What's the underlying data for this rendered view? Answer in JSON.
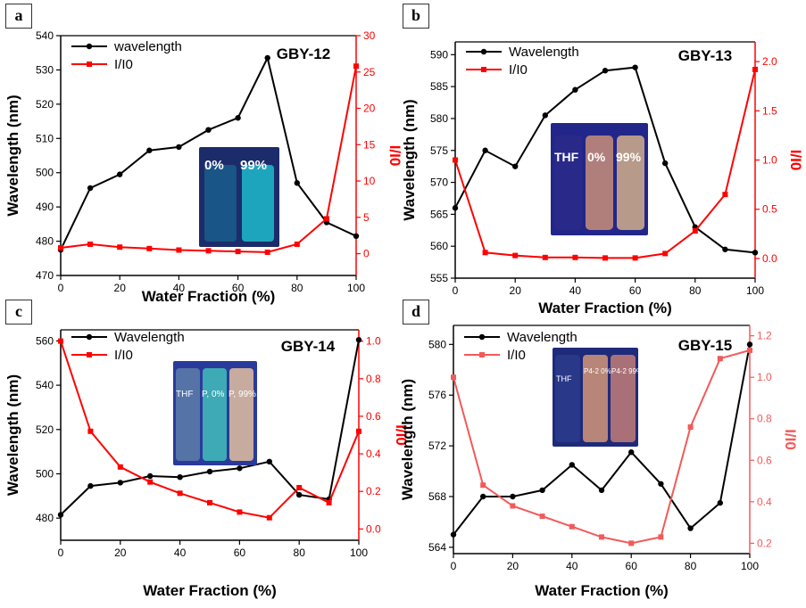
{
  "panels": [
    {
      "badge": "a",
      "inset_labels": [
        "0%",
        "99%"
      ],
      "inset_colors": [
        "#1a5a8a",
        "#1fb3c8"
      ]
    },
    {
      "badge": "b",
      "inset_labels": [
        "THF",
        "0%",
        "99%"
      ],
      "inset_colors": [
        "#2a2a8a",
        "#c08a7a",
        "#c8a78a"
      ]
    },
    {
      "badge": "c",
      "inset_labels": [
        "THF",
        "P, 0%",
        "P, 99%"
      ],
      "inset_colors": [
        "#5a7aa8",
        "#3fb7b8",
        "#d8b8a0"
      ]
    },
    {
      "badge": "d",
      "inset_labels": [
        "THF",
        "P4-2 0%",
        "P4-2 99%"
      ],
      "inset_colors": [
        "#2a3a8a",
        "#c89078",
        "#b87878"
      ]
    }
  ],
  "chart_data": [
    {
      "type": "line",
      "title": "GBY-12",
      "xlabel": "Water Fraction (%)",
      "ylabel": "Wavelength (nm)",
      "y2label": "I/I0",
      "x": [
        0,
        10,
        20,
        30,
        40,
        50,
        60,
        70,
        80,
        90,
        100
      ],
      "xlim": [
        0,
        100
      ],
      "ylim": [
        470,
        540
      ],
      "y2lim": [
        -3,
        30
      ],
      "xticks": [
        "0",
        "20",
        "40",
        "60",
        "80",
        "100"
      ],
      "yticks": [
        "470",
        "480",
        "490",
        "500",
        "510",
        "520",
        "530",
        "540"
      ],
      "y2ticks": [
        "0",
        "5",
        "10",
        "15",
        "20",
        "25",
        "30"
      ],
      "legend_position": "top-left",
      "series": [
        {
          "name": "wavelength",
          "axis": "left",
          "color": "#000000",
          "values": [
            477.5,
            495.5,
            499.5,
            506.5,
            507.5,
            512.5,
            516,
            533.5,
            497,
            485.5,
            481.5
          ]
        },
        {
          "name": "I/I0",
          "axis": "right",
          "color": "#ff0000",
          "values": [
            0.8,
            1.3,
            0.9,
            0.7,
            0.5,
            0.4,
            0.3,
            0.2,
            1.3,
            4.8,
            25.8
          ]
        }
      ]
    },
    {
      "type": "line",
      "title": "GBY-13",
      "xlabel": "Water Fraction (%)",
      "ylabel": "Wavelength (nm)",
      "y2label": "I/I0",
      "x": [
        0,
        10,
        20,
        30,
        40,
        50,
        60,
        70,
        80,
        90,
        100
      ],
      "xlim": [
        0,
        100
      ],
      "ylim": [
        555,
        592
      ],
      "y2lim": [
        -0.2,
        2.2
      ],
      "xticks": [
        "0",
        "20",
        "40",
        "60",
        "80",
        "100"
      ],
      "yticks": [
        "555",
        "560",
        "565",
        "570",
        "575",
        "580",
        "585",
        "590"
      ],
      "y2ticks": [
        "0.0",
        "0.5",
        "1.0",
        "1.5",
        "2.0"
      ],
      "legend_position": "top-left",
      "series": [
        {
          "name": "Wavelength",
          "axis": "left",
          "color": "#000000",
          "values": [
            566,
            575,
            572.5,
            580.5,
            584.5,
            587.5,
            588,
            573,
            563,
            559.5,
            559
          ]
        },
        {
          "name": "I/I0",
          "axis": "right",
          "color": "#ff0000",
          "values": [
            1.0,
            0.06,
            0.03,
            0.01,
            0.01,
            0.005,
            0.005,
            0.05,
            0.28,
            0.65,
            1.92
          ]
        }
      ]
    },
    {
      "type": "line",
      "title": "GBY-14",
      "xlabel": "Water Fraction (%)",
      "ylabel": "Wavelength (nm)",
      "y2label": "I/I0",
      "x": [
        0,
        10,
        20,
        30,
        40,
        50,
        60,
        70,
        80,
        90,
        100
      ],
      "xlim": [
        0,
        100
      ],
      "ylim": [
        470,
        565
      ],
      "y2lim": [
        -0.06,
        1.06
      ],
      "xticks": [
        "0",
        "20",
        "40",
        "60",
        "80",
        "100"
      ],
      "yticks": [
        "480",
        "500",
        "520",
        "540",
        "560"
      ],
      "y2ticks": [
        "0.0",
        "0.2",
        "0.4",
        "0.6",
        "0.8",
        "1.0"
      ],
      "legend_position": "top-left",
      "series": [
        {
          "name": "Wavelength",
          "axis": "left",
          "color": "#000000",
          "values": [
            481.5,
            494.5,
            496,
            499,
            498.5,
            501,
            502.5,
            505.5,
            490.5,
            488.5,
            560.5
          ]
        },
        {
          "name": "I/I0",
          "axis": "right",
          "color": "#ff0000",
          "values": [
            1.0,
            0.52,
            0.33,
            0.25,
            0.19,
            0.14,
            0.09,
            0.06,
            0.22,
            0.14,
            0.52
          ]
        }
      ]
    },
    {
      "type": "line",
      "title": "GBY-15",
      "xlabel": "Water Fraction (%)",
      "ylabel": "Wavelength (nm)",
      "y2label": "I/I0",
      "x": [
        0,
        10,
        20,
        30,
        40,
        50,
        60,
        70,
        80,
        90,
        100
      ],
      "xlim": [
        0,
        100
      ],
      "ylim": [
        563.5,
        581.5
      ],
      "y2lim": [
        0.15,
        1.25
      ],
      "xticks": [
        "0",
        "20",
        "40",
        "60",
        "80",
        "100"
      ],
      "yticks": [
        "564",
        "568",
        "572",
        "576",
        "580"
      ],
      "y2ticks": [
        "0.2",
        "0.4",
        "0.6",
        "0.8",
        "1.0",
        "1.2"
      ],
      "legend_position": "top-left",
      "series": [
        {
          "name": "Wavelength",
          "axis": "left",
          "color": "#000000",
          "values": [
            565,
            568,
            568,
            568.5,
            570.5,
            568.5,
            571.5,
            569,
            565.5,
            567.5,
            580
          ]
        },
        {
          "name": "I/I0",
          "axis": "right",
          "color": "#f25a5a",
          "values": [
            1.0,
            0.48,
            0.38,
            0.33,
            0.28,
            0.23,
            0.2,
            0.23,
            0.76,
            1.09,
            1.13
          ]
        }
      ]
    }
  ]
}
